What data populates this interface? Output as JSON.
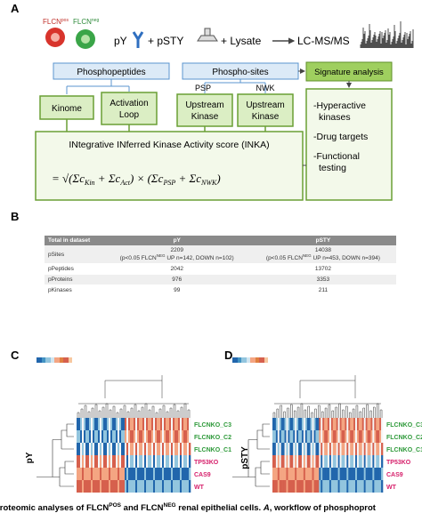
{
  "panelA": {
    "label": "A",
    "flcn_pos": [
      "FLCN",
      "pos"
    ],
    "flcn_neg": [
      "FLCN",
      "neg"
    ],
    "py": "pY",
    "pstY": "+ pSTY",
    "lysate": "+ Lysate",
    "lcms": "LC-MS/MS",
    "phosphopeptides": "Phosphopeptides",
    "phosphosites": "Phospho-sites",
    "signature": "Signature analysis",
    "kinome": "Kinome",
    "activation": [
      "Activation",
      "Loop"
    ],
    "psp": "PSP",
    "nwk": "NWK",
    "upstream": [
      "Upstream",
      "Kinase"
    ],
    "inka_title": "INtegrative INferred Kinase Activity score (INKA)",
    "formula": [
      "= √(Σc",
      "Kin",
      " + Σc",
      "Act",
      ") × (Σc",
      "PSP",
      " + Σc",
      "NWK",
      ")"
    ],
    "outcomes": [
      [
        "-Hyperactive",
        "kinases"
      ],
      [
        "-Drug targets"
      ],
      [
        "-Functional",
        "testing"
      ]
    ]
  },
  "panelB": {
    "label": "B",
    "table": {
      "header": [
        "Total in dataset",
        "pY",
        "pSTY"
      ],
      "rows": [
        [
          "pSites",
          {
            "main": "2209",
            "note": [
              "(p<0.05 FLCN",
              "NEG",
              " UP n=142, DOWN n=102)"
            ]
          },
          {
            "main": "14038",
            "note": [
              "(p<0.05 FLCN",
              "NEG",
              " UP n=453, DOWN n=394)"
            ]
          }
        ],
        [
          "pPeptides",
          "2042",
          "13702"
        ],
        [
          "pProteins",
          "976",
          "3353"
        ],
        [
          "pKinases",
          "99",
          "211"
        ]
      ]
    }
  },
  "panelC": {
    "label": "C",
    "axis": "pY",
    "rows": [
      "FLCNKO_C3",
      "FLCNKO_C2",
      "FLCNKO_C1",
      "TP53KO",
      "CAS9",
      "WT"
    ]
  },
  "panelD": {
    "label": "D",
    "axis": "pSTY",
    "rows": [
      "FLCNKO_C3",
      "FLCNKO_C2",
      "FLCNKO_C1",
      "TP53KO",
      "CAS9",
      "WT"
    ]
  },
  "caption": [
    "proteomic analyses of FLCN",
    "POS",
    " and FLCN",
    "NEG",
    " renal epithelial cells. ",
    "A",
    ", workflow of phosphoprot"
  ]
}
